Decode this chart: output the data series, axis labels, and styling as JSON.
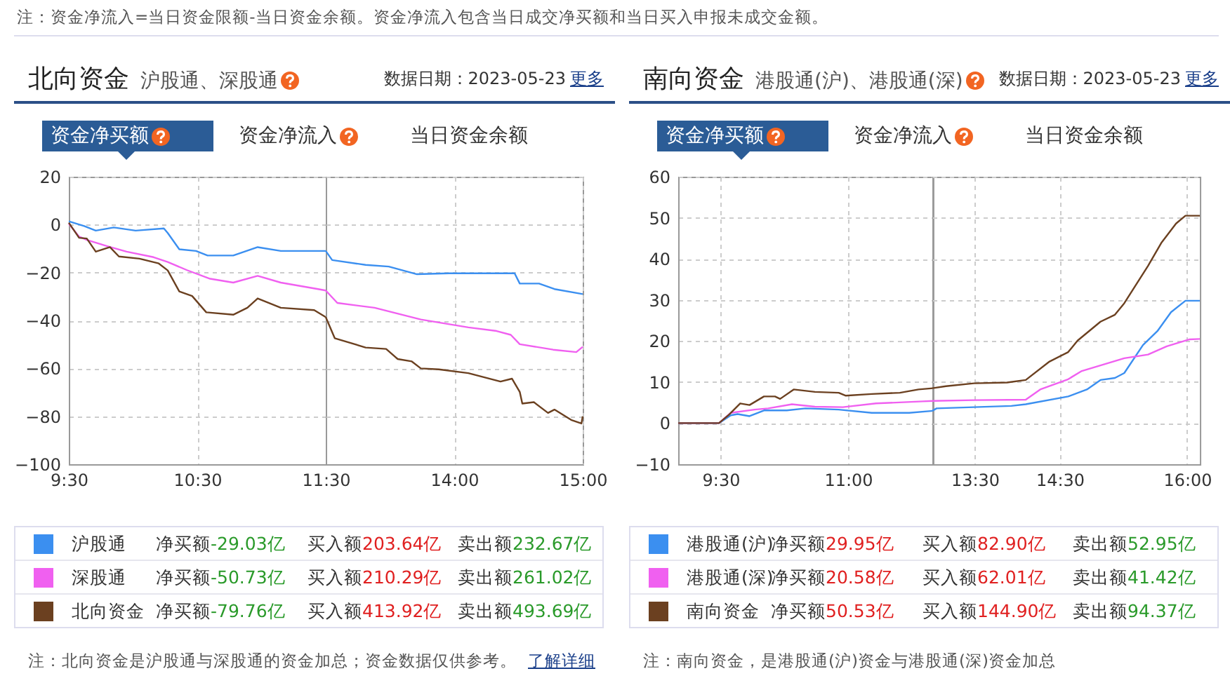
{
  "chart_data": [
    {
      "type": "other",
      "annotations": [
        "注：资金净流入=当日资金限额-当日资金余额。资金净流入包含当日成交净买额和当日买入申报未成交金额。"
      ]
    },
    {
      "type": "line",
      "title": "北向资金",
      "subtitle": "沪股通、深股通",
      "xlim": [
        9.5,
        11.5
      ],
      "xticks": [
        {
          "value": 9.5,
          "label": "9:30"
        },
        {
          "value": 10.5,
          "label": "10:30"
        },
        {
          "value": 11.5,
          "label": "11:30"
        }
      ],
      "ylim": [
        -100,
        20
      ],
      "yticks": [
        -100,
        -80,
        -60,
        -40,
        -20,
        0,
        20
      ],
      "grid": true,
      "legend": "bottom",
      "annotations": [
        "数据日期：2023-05-23",
        "更多",
        "资金净买额",
        "资金净流入",
        "当日资金余额",
        "净买额-29.03亿",
        "买入额203.64亿",
        "卖出额232.67亿",
        "净买额-50.73亿",
        "买入额210.29亿",
        "卖出额261.02亿",
        "净买额-79.76亿",
        "买入额413.92亿",
        "卖出额493.69亿",
        "注：北向资金是沪股通与深股通的资金加总；资金数据仅供参考。",
        "了解详细"
      ],
      "series": [
        {
          "name": "沪股通",
          "color": "#3b8ff0",
          "x": [
            9.5,
            9.62,
            9.71,
            9.85,
            10.02,
            10.24,
            10.27,
            10.36,
            10.49,
            10.58,
            10.78,
            10.97,
            11.15,
            11.5
          ],
          "values": [
            1.4,
            -0.6,
            -2.5,
            -1.2,
            -2.5,
            -1.6,
            -3.5,
            -10.3,
            -11,
            -12.9,
            -12.9,
            -9.4,
            -11,
            -11
          ]
        },
        {
          "name": "深股通",
          "color": "#f060f0",
          "x": [
            9.5,
            9.58,
            9.64,
            9.8,
            9.95,
            10.16,
            10.27,
            10.42,
            10.6,
            10.78,
            10.97,
            11.15,
            11.44,
            11.5
          ],
          "values": [
            0.4,
            -5,
            -6.4,
            -9,
            -11.3,
            -13.6,
            -15.6,
            -19,
            -22.6,
            -24.2,
            -21.4,
            -24.2,
            -26.9,
            -27.5
          ]
        },
        {
          "name": "北向资金",
          "color": "#6b4020",
          "x": [
            9.5,
            9.58,
            9.64,
            9.71,
            9.82,
            9.89,
            10.05,
            10.2,
            10.27,
            10.36,
            10.46,
            10.57,
            10.78,
            10.89,
            10.97,
            11.15,
            11.41,
            11.5
          ],
          "values": [
            0.8,
            -5.5,
            -5.8,
            -11.3,
            -9.4,
            -13.3,
            -14.2,
            -16.2,
            -19.1,
            -27.9,
            -29.8,
            -36.6,
            -37.6,
            -34.7,
            -30.8,
            -34.7,
            -35.7,
            -38.6
          ]
        }
      ]
    },
    {
      "type": "line",
      "xlim": [
        13,
        15
      ],
      "xticks": [
        {
          "value": 14,
          "label": "14:00"
        },
        {
          "value": 15,
          "label": "15:00"
        }
      ],
      "ylim": [
        -100,
        20
      ],
      "yticks": [
        -100,
        -80,
        -60,
        -40,
        -20,
        0,
        20
      ],
      "grid": true,
      "tick_labels": "x",
      "series": [
        {
          "color": "#3b8ff0",
          "x": [
            13,
            13.05,
            13.31,
            13.49,
            13.71,
            13.96,
            14.47,
            14.51,
            14.66,
            14.78,
            15
          ],
          "values": [
            -11,
            -14.8,
            -16.8,
            -17.5,
            -20.7,
            -20.3,
            -20.3,
            -24.6,
            -24.6,
            -26.9,
            -29
          ]
        },
        {
          "color": "#f060f0",
          "x": [
            13,
            13.09,
            13.38,
            13.74,
            14.11,
            14.33,
            14.44,
            14.51,
            14.77,
            14.95,
            15
          ],
          "values": [
            -27.5,
            -32.7,
            -34.7,
            -39.6,
            -42.9,
            -44.4,
            -46,
            -49.9,
            -52.2,
            -53.2,
            -51
          ]
        },
        {
          "color": "#6b4020",
          "x": [
            13,
            13.07,
            13.31,
            13.47,
            13.56,
            13.67,
            13.74,
            13.88,
            14.11,
            14.36,
            14.45,
            14.51,
            14.53,
            14.62,
            14.73,
            14.78,
            14.91,
            14.99,
            15
          ],
          "values": [
            -38.6,
            -47.4,
            -51.3,
            -51.9,
            -56.1,
            -57.1,
            -60,
            -60.4,
            -62,
            -65.5,
            -64.3,
            -69.8,
            -74.7,
            -74.1,
            -78.6,
            -77.2,
            -81.5,
            -83,
            -80
          ]
        }
      ]
    },
    {
      "type": "line",
      "title": "南向资金",
      "subtitle": "港股通(沪)、港股通(深)",
      "xlim": [
        9,
        12
      ],
      "xticks": [
        {
          "value": 9.5,
          "label": "9:30"
        },
        {
          "value": 11,
          "label": "11:00"
        }
      ],
      "ylim": [
        -10,
        60
      ],
      "yticks": [
        -10,
        0,
        10,
        20,
        30,
        40,
        50,
        60
      ],
      "grid": true,
      "legend": "bottom",
      "annotations": [
        "数据日期：2023-05-23",
        "更多",
        "资金净买额",
        "资金净流入",
        "当日资金余额",
        "净买额29.95亿",
        "买入额82.90亿",
        "卖出额52.95亿",
        "净买额20.58亿",
        "买入额62.01亿",
        "卖出额41.42亿",
        "净买额50.53亿",
        "买入额144.90亿",
        "卖出额94.37亿",
        "注：南向资金，是港股通(沪)资金与港股通(深)资金加总"
      ],
      "series": [
        {
          "name": "港股通(沪)",
          "color": "#3b8ff0",
          "x": [
            9,
            9.48,
            9.62,
            9.7,
            9.84,
            10.01,
            10.28,
            10.5,
            10.89,
            11.28,
            11.72,
            12
          ],
          "values": [
            0,
            0,
            1.9,
            2.2,
            1.7,
            3.1,
            3.1,
            3.6,
            3.3,
            2.5,
            2.5,
            3
          ]
        },
        {
          "name": "港股通(深)",
          "color": "#f060f0",
          "x": [
            9,
            9.48,
            9.62,
            9.9,
            10.06,
            10.34,
            10.61,
            10.94,
            11.33,
            11.88,
            12
          ],
          "values": [
            0,
            0,
            2.5,
            3.3,
            3.6,
            4.6,
            4,
            3.9,
            4.8,
            5.3,
            5.4
          ]
        },
        {
          "name": "南向资金",
          "color": "#6b4020",
          "x": [
            9,
            9.48,
            9.59,
            9.73,
            9.84,
            10.01,
            10.14,
            10.2,
            10.36,
            10.61,
            10.89,
            10.97,
            11.28,
            11.61,
            11.83,
            12
          ],
          "values": [
            0,
            0,
            1.9,
            4.8,
            4.4,
            6.5,
            6.5,
            5.9,
            8.2,
            7.6,
            7.4,
            6.7,
            7.1,
            7.4,
            8.2,
            8.5
          ]
        }
      ]
    },
    {
      "type": "line",
      "xlim": [
        13,
        16.15
      ],
      "xticks": [
        {
          "value": 13.5,
          "label": "13:30"
        },
        {
          "value": 14.5,
          "label": "14:30"
        },
        {
          "value": 16,
          "label": "16:00"
        }
      ],
      "ylim": [
        -10,
        60
      ],
      "yticks": [
        -10,
        0,
        10,
        20,
        30,
        40,
        50,
        60
      ],
      "grid": true,
      "tick_labels": "x",
      "series": [
        {
          "color": "#3b8ff0",
          "x": [
            13,
            13.05,
            13.49,
            13.93,
            14.1,
            14.6,
            14.82,
            14.98,
            15.15,
            15.26,
            15.48,
            15.65,
            15.81,
            15.98,
            16.15
          ],
          "values": [
            3,
            3.6,
            3.9,
            4.2,
            4.6,
            6.5,
            8.2,
            10.5,
            11,
            12.2,
            19,
            22.4,
            27,
            29.8,
            29.8
          ]
        },
        {
          "color": "#f060f0",
          "x": [
            13,
            13.49,
            14.1,
            14.27,
            14.6,
            14.76,
            15.26,
            15.54,
            15.76,
            16.03,
            16.15
          ],
          "values": [
            5.4,
            5.6,
            5.7,
            8.2,
            10.7,
            12.7,
            15.8,
            16.7,
            18.7,
            20.4,
            20.5
          ]
        },
        {
          "color": "#6b4020",
          "x": [
            13,
            13.16,
            13.49,
            13.88,
            14.1,
            14.38,
            14.6,
            14.71,
            14.98,
            15.15,
            15.26,
            15.54,
            15.7,
            15.87,
            15.98,
            16.15
          ],
          "values": [
            8.5,
            9,
            9.7,
            9.9,
            10.5,
            15,
            17.3,
            20.1,
            24.7,
            26.4,
            29.2,
            38.3,
            44,
            48.6,
            50.5,
            50.5
          ]
        }
      ]
    }
  ]
}
